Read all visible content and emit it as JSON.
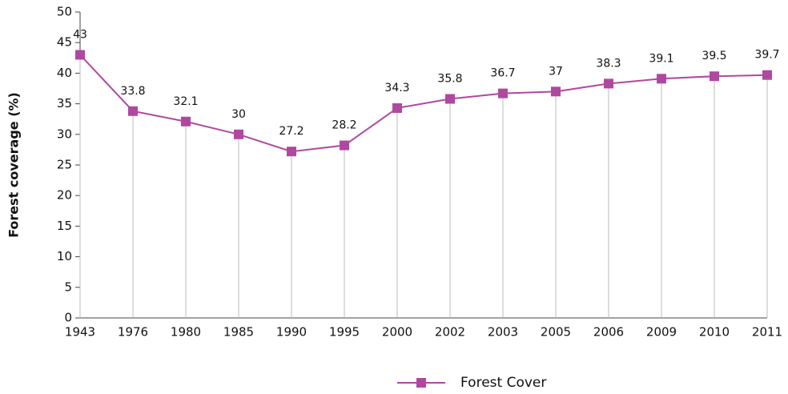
{
  "chart_data": {
    "type": "line",
    "y_axis_label": "Forest coverage (%)",
    "categories": [
      "1943",
      "1976",
      "1980",
      "1985",
      "1990",
      "1995",
      "2000",
      "2002",
      "2003",
      "2005",
      "2006",
      "2009",
      "2010",
      "2011"
    ],
    "series": [
      {
        "name": "Forest Cover",
        "color": "#b0489f",
        "values": [
          43,
          33.8,
          32.1,
          30,
          27.2,
          28.2,
          34.3,
          35.8,
          36.7,
          37,
          38.3,
          39.1,
          39.5,
          39.7
        ]
      }
    ],
    "ylim": [
      0,
      50
    ],
    "yticks": [
      0,
      5,
      10,
      15,
      20,
      25,
      30,
      35,
      40,
      45,
      50
    ],
    "drop_lines": true,
    "data_labels": true,
    "legend": "bottom"
  }
}
